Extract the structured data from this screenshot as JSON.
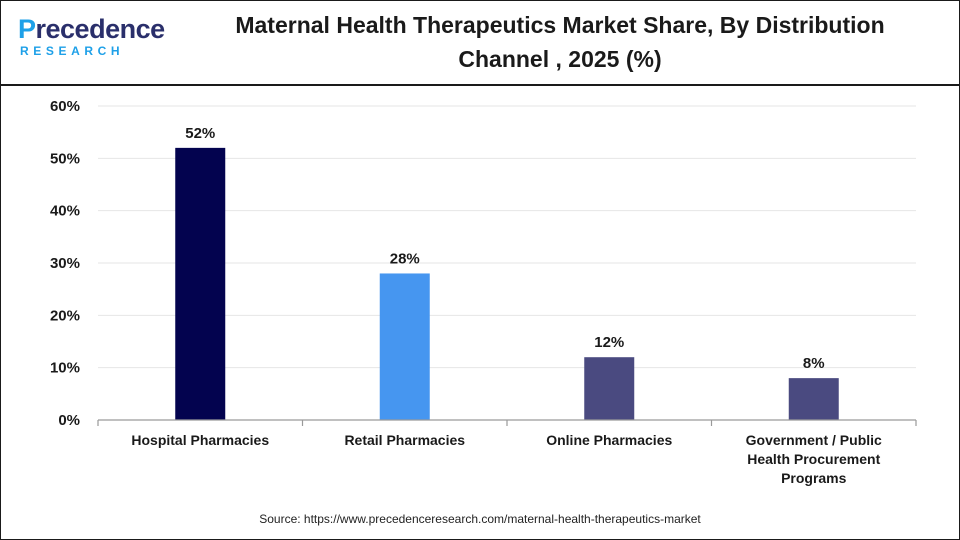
{
  "brand": {
    "logo_word_prefix": "P",
    "logo_word_rest": "recedence",
    "logo_sub": "RESEARCH"
  },
  "chart_data": {
    "type": "bar",
    "title": "Maternal Health Therapeutics Market Share, By Distribution Channel , 2025 (%)",
    "xlabel": "",
    "ylabel": "",
    "categories": [
      "Hospital Pharmacies",
      "Retail Pharmacies",
      "Online Pharmacies",
      "Government / Public Health Procurement Programs"
    ],
    "category_lines": [
      [
        "Hospital Pharmacies"
      ],
      [
        "Retail Pharmacies"
      ],
      [
        "Online Pharmacies"
      ],
      [
        "Government / Public",
        "Health Procurement",
        "Programs"
      ]
    ],
    "values": [
      52,
      28,
      12,
      8
    ],
    "data_labels": [
      "52%",
      "28%",
      "12%",
      "8%"
    ],
    "bar_colors": [
      "#03034f",
      "#4696f0",
      "#4a4a80",
      "#4a4a80"
    ],
    "ylim": [
      0,
      60
    ],
    "yticks": [
      0,
      10,
      20,
      30,
      40,
      50,
      60
    ],
    "ytick_labels": [
      "0%",
      "10%",
      "20%",
      "30%",
      "40%",
      "50%",
      "60%"
    ],
    "grid": true,
    "legend": "none"
  },
  "source_text": "Source: https://www.precedenceresearch.com/maternal-health-therapeutics-market"
}
